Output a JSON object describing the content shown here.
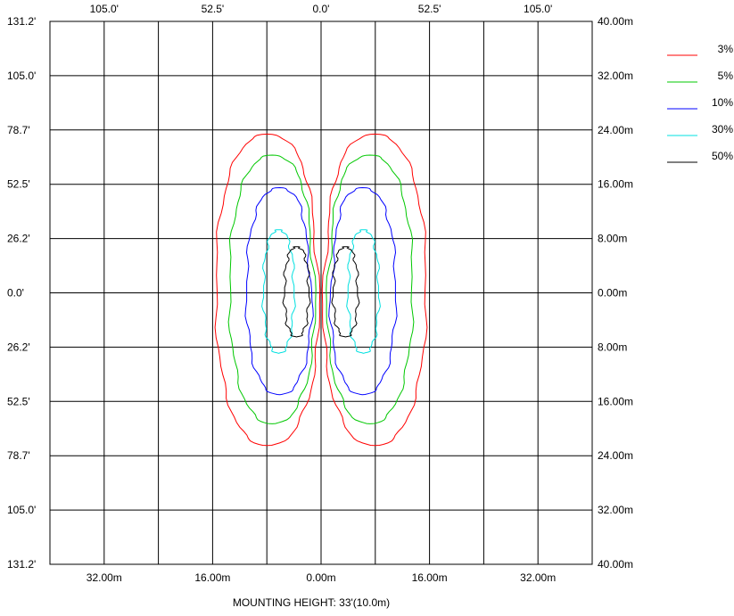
{
  "chart_data": {
    "type": "contour",
    "title": "",
    "caption": "MOUNTING HEIGHT: 33'(10.0m)",
    "x_range_m": [
      -40,
      40
    ],
    "y_range_m": [
      -40,
      40
    ],
    "grid": true,
    "legend_position": "right",
    "top_tick_labels": [
      "105.0'",
      "52.5'",
      "0.0'",
      "52.5'",
      "105.0'"
    ],
    "top_tick_values_m": [
      -32,
      -16,
      0,
      16,
      32
    ],
    "bottom_tick_labels": [
      "32.00m",
      "16.00m",
      "0.00m",
      "16.00m",
      "32.00m"
    ],
    "bottom_tick_values_m": [
      -32,
      -16,
      0,
      16,
      32
    ],
    "left_tick_labels": [
      "131.2'",
      "105.0'",
      "78.7'",
      "52.5'",
      "26.2'",
      "0.0'",
      "26.2'",
      "52.5'",
      "78.7'",
      "105.0'",
      "131.2'"
    ],
    "right_tick_labels": [
      "40.00m",
      "32.00m",
      "24.00m",
      "16.00m",
      "8.00m",
      "0.00m",
      "8.00m",
      "16.00m",
      "24.00m",
      "32.00m",
      "40.00m"
    ],
    "y_tick_values_m": [
      40,
      32,
      24,
      16,
      8,
      0,
      -8,
      -16,
      -24,
      -32,
      -40
    ],
    "series": [
      {
        "name": "3%",
        "color": "#ff0000",
        "center_x_m": -11,
        "extent_m": {
          "left": -15.5,
          "right": -0.2,
          "top": 23.4,
          "bottom": -22.5
        },
        "notch_m": {
          "x": -4.0,
          "y": 10.0
        },
        "mirror": true
      },
      {
        "name": "5%",
        "color": "#00c800",
        "center_x_m": -11,
        "extent_m": {
          "left": -13.5,
          "right": -0.8,
          "top": 20.3,
          "bottom": -19.3
        },
        "notch_m": {
          "x": -4.5,
          "y": 9.0
        },
        "mirror": true
      },
      {
        "name": "10%",
        "color": "#0000ff",
        "center_x_m": -10,
        "extent_m": {
          "left": -11.0,
          "right": -1.3,
          "top": 15.5,
          "bottom": -15.0
        },
        "notch_m": {
          "x": -5.0,
          "y": 7.0
        },
        "mirror": true
      },
      {
        "name": "30%",
        "color": "#00e0e0",
        "center_x_m": -7.5,
        "extent_m": {
          "left": -8.5,
          "right": -4.0,
          "top": 9.3,
          "bottom": -8.9
        },
        "notch_m": {
          "x": -4.0,
          "y": 0.0
        },
        "mirror": true
      },
      {
        "name": "50%",
        "color": "#000000",
        "center_x_m": -5,
        "extent_m": {
          "left": -5.4,
          "right": -1.8,
          "top": 6.8,
          "bottom": -6.5
        },
        "notch_m": {
          "x": -1.8,
          "y": 0.0
        },
        "mirror": true
      }
    ]
  }
}
